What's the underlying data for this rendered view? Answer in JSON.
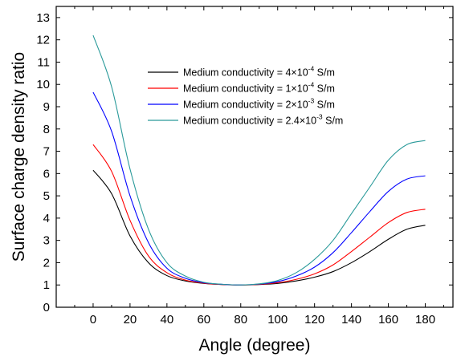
{
  "chart_data": {
    "type": "line",
    "xlabel": "Angle (degree)",
    "ylabel": "Surface charge density ratio",
    "xlim": [
      -20,
      195
    ],
    "ylim": [
      0,
      13.5
    ],
    "x_ticks": [
      0,
      20,
      40,
      60,
      80,
      100,
      120,
      140,
      160,
      180
    ],
    "y_ticks": [
      0,
      1,
      2,
      3,
      4,
      5,
      6,
      7,
      8,
      9,
      10,
      11,
      12,
      13
    ],
    "grid": false,
    "legend_position": "top-center",
    "x": [
      0,
      10,
      20,
      30,
      40,
      50,
      60,
      70,
      80,
      90,
      100,
      110,
      120,
      130,
      140,
      150,
      160,
      170,
      180
    ],
    "series": [
      {
        "name_prefix": "Medium conductivity = 4×10",
        "name_exp": "-4",
        "name_suffix": " S/m",
        "color": "#000000",
        "values": [
          6.15,
          5.1,
          3.2,
          2.0,
          1.42,
          1.18,
          1.07,
          1.02,
          1.0,
          1.02,
          1.07,
          1.18,
          1.35,
          1.6,
          2.0,
          2.5,
          3.05,
          3.5,
          3.68
        ]
      },
      {
        "name_prefix": "Medium conductivity = 1×10",
        "name_exp": "-4",
        "name_suffix": " S/m",
        "color": "#ff0000",
        "values": [
          7.3,
          6.1,
          3.9,
          2.3,
          1.55,
          1.22,
          1.08,
          1.02,
          1.0,
          1.03,
          1.1,
          1.25,
          1.5,
          1.9,
          2.5,
          3.15,
          3.8,
          4.25,
          4.4
        ]
      },
      {
        "name_prefix": "Medium conductivity = 2×10",
        "name_exp": "-3",
        "name_suffix": " S/m",
        "color": "#0000ff",
        "values": [
          9.65,
          7.9,
          5.0,
          2.9,
          1.75,
          1.3,
          1.1,
          1.03,
          1.0,
          1.04,
          1.15,
          1.4,
          1.8,
          2.45,
          3.35,
          4.3,
          5.2,
          5.75,
          5.9
        ]
      },
      {
        "name_prefix": "Medium conductivity = 2.4×10",
        "name_exp": "-3",
        "name_suffix": " S/m",
        "color": "#2a9a9a",
        "values": [
          12.2,
          9.9,
          6.2,
          3.5,
          2.0,
          1.4,
          1.12,
          1.03,
          1.0,
          1.05,
          1.2,
          1.55,
          2.15,
          3.0,
          4.2,
          5.4,
          6.6,
          7.3,
          7.48
        ]
      }
    ]
  }
}
